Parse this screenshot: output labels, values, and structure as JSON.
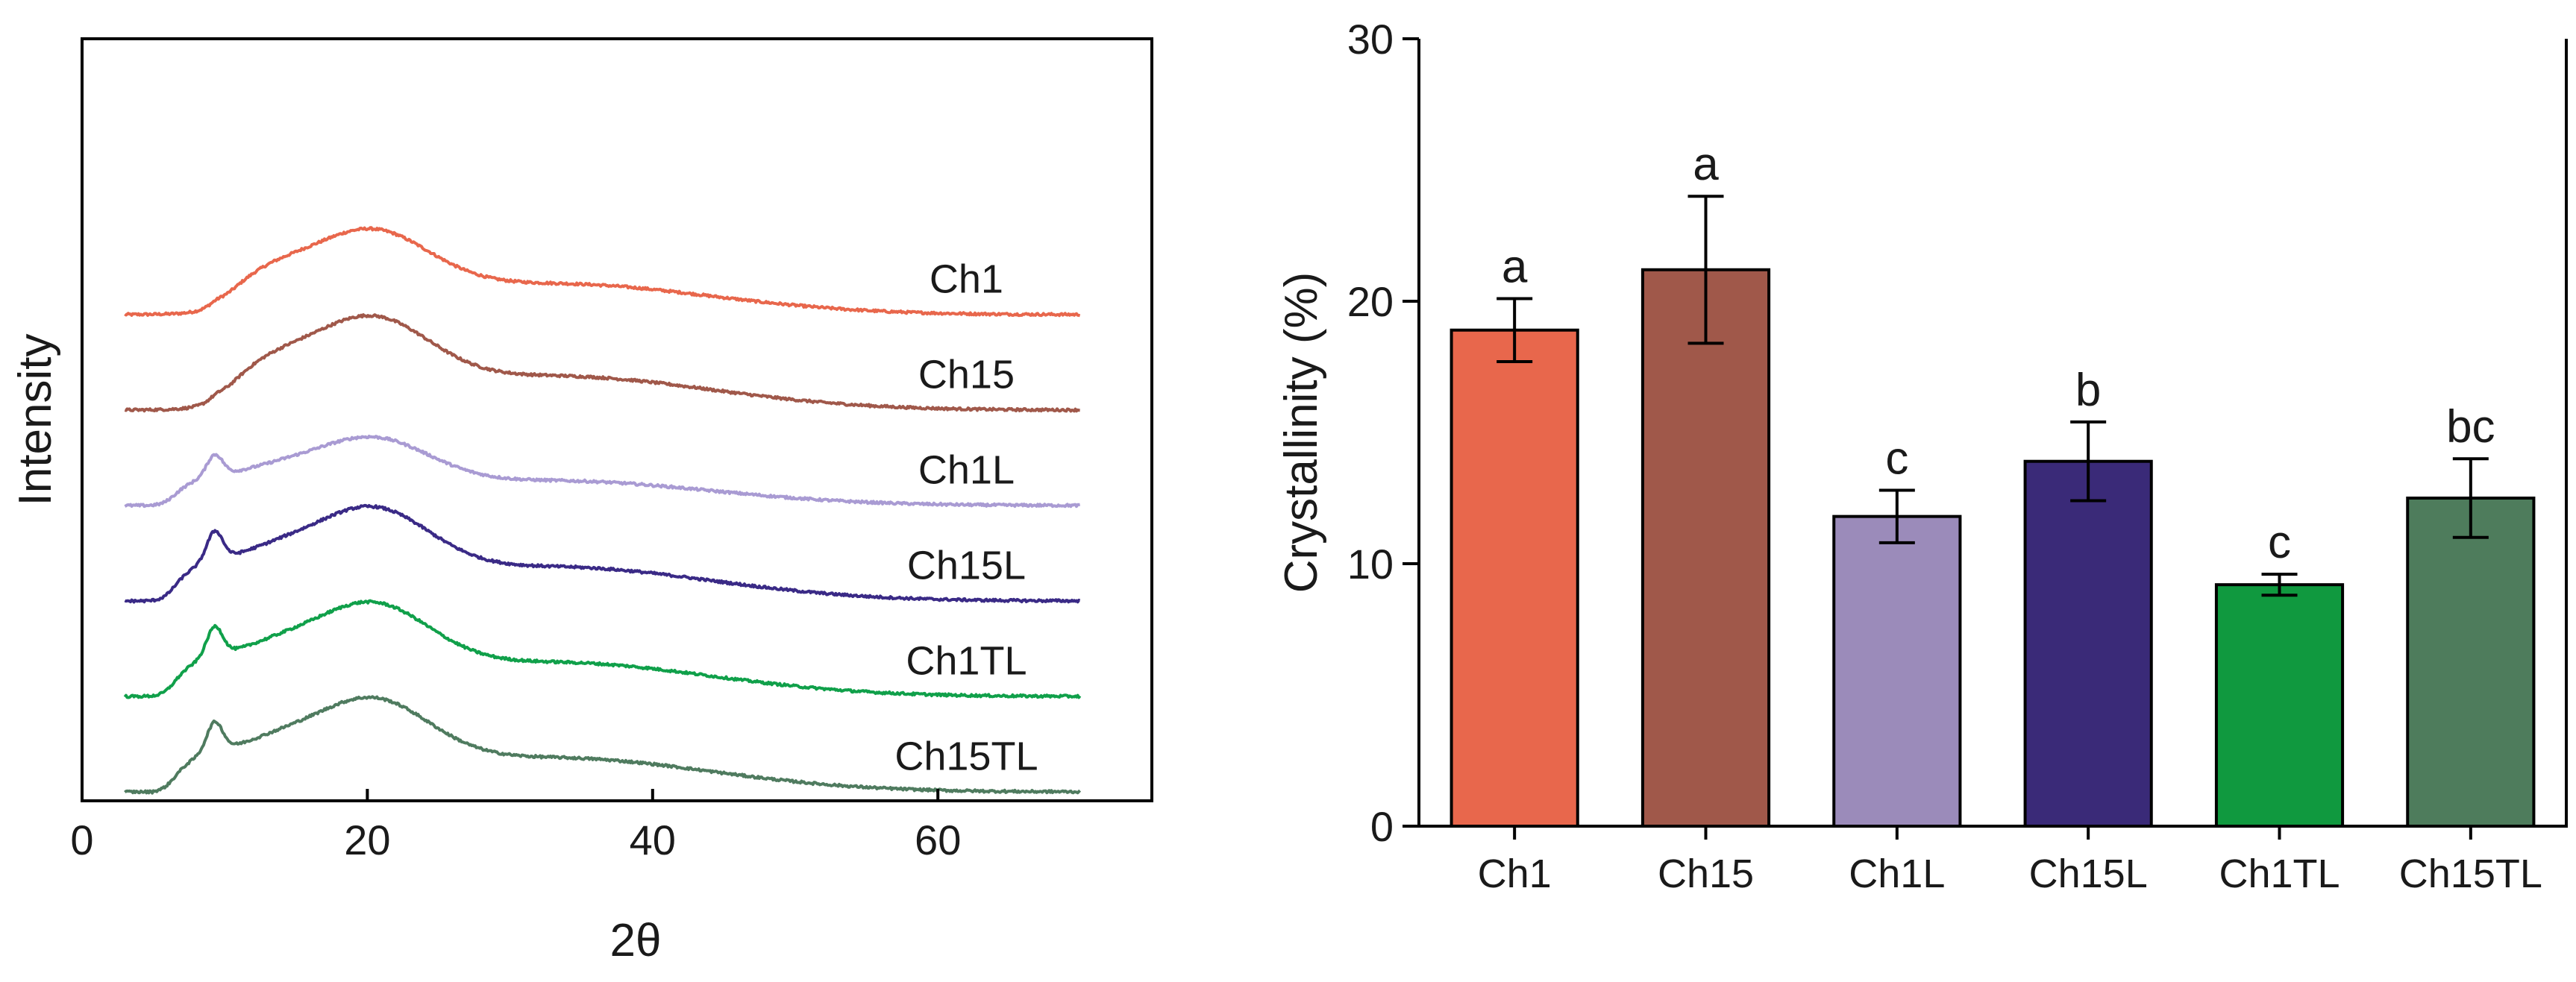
{
  "chart_data": [
    {
      "type": "line",
      "title": "",
      "xlabel": "2θ",
      "ylabel": "Intensity",
      "xlim": [
        0,
        75
      ],
      "xticks": [
        0,
        20,
        40,
        60
      ],
      "x_range": [
        3,
        70
      ],
      "series": [
        {
          "name": "Ch1",
          "color": "#E8674C",
          "offset": 5.0,
          "amp": 1.0
        },
        {
          "name": "Ch15",
          "color": "#A0584A",
          "offset": 4.0,
          "amp": 1.1
        },
        {
          "name": "Ch1L",
          "color": "#A99BD3",
          "offset": 3.0,
          "amp": 0.8
        },
        {
          "name": "Ch15L",
          "color": "#3A2A86",
          "offset": 2.0,
          "amp": 1.1
        },
        {
          "name": "Ch1TL",
          "color": "#10A04A",
          "offset": 1.0,
          "amp": 1.1
        },
        {
          "name": "Ch15TL",
          "color": "#4F7B5F",
          "offset": 0.0,
          "amp": 1.1
        }
      ]
    },
    {
      "type": "bar",
      "title": "",
      "xlabel": "",
      "ylabel": "Crystallinity (%)",
      "ylim": [
        0,
        30
      ],
      "yticks": [
        0,
        10,
        20,
        30
      ],
      "categories": [
        "Ch1",
        "Ch15",
        "Ch1L",
        "Ch15L",
        "Ch1TL",
        "Ch15TL"
      ],
      "values": [
        18.9,
        21.2,
        11.8,
        13.9,
        9.2,
        12.5
      ],
      "errors": [
        1.2,
        2.8,
        1.0,
        1.5,
        0.4,
        1.5
      ],
      "letters": [
        "a",
        "a",
        "c",
        "b",
        "c",
        "bc"
      ],
      "colors": [
        "#E8674C",
        "#A0584A",
        "#9B8BBA",
        "#3A2A78",
        "#10993F",
        "#4E7C5C"
      ]
    }
  ]
}
